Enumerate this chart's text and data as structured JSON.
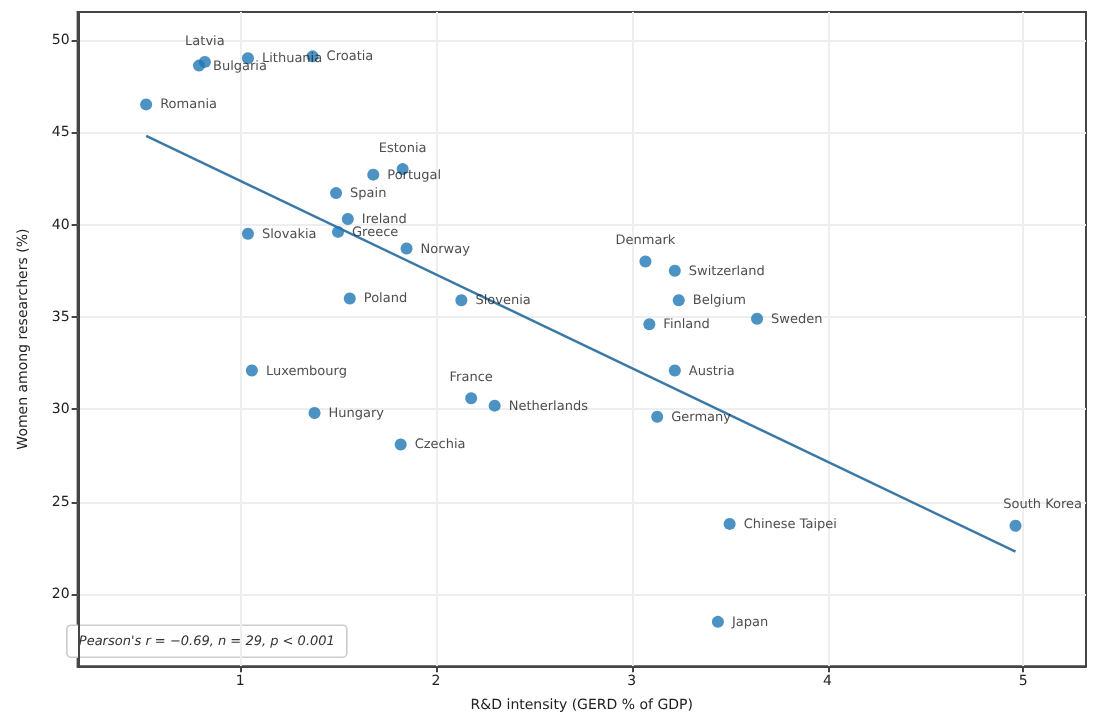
{
  "chart_data": {
    "type": "scatter",
    "xlabel": "R&D intensity (GERD % of GDP)",
    "ylabel": "Women among researchers (%)",
    "annotations": [
      "Pearson's r = −0.69, n = 29, p < 0.001"
    ],
    "series": [
      {
        "marker": "circle",
        "color": "#1f77b4",
        "x": [
          0.52,
          0.79,
          0.82,
          1.04,
          1.37,
          1.68,
          1.83,
          1.49,
          1.55,
          1.5,
          1.04,
          1.85,
          1.56,
          2.13,
          3.07,
          3.22,
          3.24,
          3.09,
          3.64,
          3.22,
          3.13,
          3.5,
          3.44,
          4.96,
          1.06,
          1.38,
          1.82,
          2.18,
          2.3
        ],
        "values": [
          46.5,
          48.6,
          48.8,
          49.0,
          49.1,
          42.7,
          43.0,
          41.7,
          40.3,
          39.6,
          39.5,
          38.7,
          36.0,
          35.9,
          38.0,
          37.5,
          35.9,
          34.6,
          34.9,
          32.1,
          29.6,
          23.8,
          18.5,
          23.7,
          32.1,
          29.8,
          28.1,
          30.6,
          30.2
        ],
        "value_labels": [
          "Romania",
          "Bulgaria",
          "Latvia",
          "Lithuania",
          "Croatia",
          "Portugal",
          "Estonia",
          "Spain",
          "Ireland",
          "Greece",
          "Slovakia",
          "Norway",
          "Poland",
          "Slovenia",
          "Denmark",
          "Switzerland",
          "Belgium",
          "Finland",
          "Sweden",
          "Austria",
          "Germany",
          "Chinese Taipei",
          "Japan",
          "South Korea",
          "Luxembourg",
          "Hungary",
          "Czechia",
          "France",
          "Netherlands"
        ]
      },
      {
        "type": "line",
        "marker": "none",
        "color": "#3a78a6",
        "x": [
          0.52,
          4.96
        ],
        "values": [
          44.8,
          22.3
        ]
      }
    ],
    "xlim": [
      0.17,
      5.32
    ],
    "ylim": [
      16.1,
      51.5
    ],
    "xticks": [
      1,
      2,
      3,
      4,
      5
    ],
    "yticks": [
      20,
      25,
      30,
      35,
      40,
      45,
      50
    ],
    "grid": true,
    "line_style": "solid"
  }
}
